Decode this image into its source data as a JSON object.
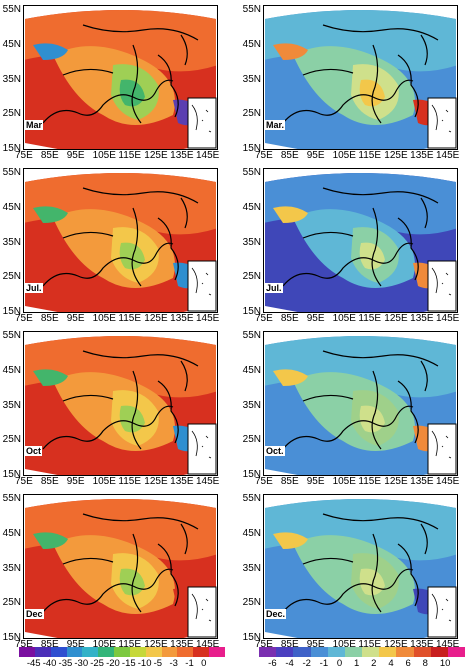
{
  "y_ticks": [
    "55N",
    "45N",
    "35N",
    "25N",
    "15N"
  ],
  "x_ticks": [
    "75E",
    "85E",
    "95E",
    "105E",
    "115E",
    "125E",
    "135E",
    "145E"
  ],
  "left_column": {
    "panels": [
      {
        "month": "Mar",
        "palette": [
          "#d7301f",
          "#ef6c2f",
          "#f39a3c",
          "#9fcf55",
          "#43b56b",
          "#2f8fd0",
          "#5b3fb1"
        ]
      },
      {
        "month": "Jul.",
        "palette": [
          "#d7301f",
          "#ef6c2f",
          "#f39a3c",
          "#f3c74a",
          "#9fcf55",
          "#43b56b",
          "#2f8fd0"
        ]
      },
      {
        "month": "Oct",
        "palette": [
          "#d7301f",
          "#ef6c2f",
          "#f39a3c",
          "#f3c74a",
          "#9fcf55",
          "#43b56b",
          "#2f8fd0"
        ]
      },
      {
        "month": "Dec",
        "palette": [
          "#d7301f",
          "#ef6c2f",
          "#f39a3c",
          "#f3c74a",
          "#9fcf55",
          "#43b56b",
          "#d7301f"
        ]
      }
    ],
    "colorbar": {
      "labels": [
        "-45",
        "-40",
        "-35",
        "-30",
        "-25",
        "-20",
        "-15",
        "-10",
        "-5",
        "-3",
        "-1",
        "0"
      ],
      "colors": [
        "#7a0fa0",
        "#4b2fb8",
        "#2f4fd0",
        "#2f8fd0",
        "#33b2c8",
        "#33b57a",
        "#7cc940",
        "#c6d83a",
        "#f3c74a",
        "#f39a3c",
        "#ef6c2f",
        "#d7301f",
        "#e81e8c"
      ]
    }
  },
  "right_column": {
    "panels": [
      {
        "month": "Mar.",
        "palette": [
          "#4a8fd6",
          "#5fb7d6",
          "#8bd0a6",
          "#cfe08b",
          "#f3c74a",
          "#f08a3a",
          "#d7301f"
        ]
      },
      {
        "month": "Jul.",
        "palette": [
          "#3f47b8",
          "#4a8fd6",
          "#5fb7d6",
          "#8bd0a6",
          "#cfe08b",
          "#f3c74a",
          "#f08a3a"
        ]
      },
      {
        "month": "Oct.",
        "palette": [
          "#4a8fd6",
          "#5fb7d6",
          "#8bd0a6",
          "#9fd08a",
          "#cfe08b",
          "#f3c74a",
          "#f08a3a"
        ]
      },
      {
        "month": "Dec.",
        "palette": [
          "#4a8fd6",
          "#5fb7d6",
          "#8bd0a6",
          "#9fd08a",
          "#cfe08b",
          "#f3c74a",
          "#3f47b8"
        ]
      }
    ],
    "colorbar": {
      "labels": [
        "-6",
        "-4",
        "-2",
        "-1",
        "0",
        "1",
        "2",
        "4",
        "6",
        "8",
        "10"
      ],
      "colors": [
        "#7a2fb0",
        "#4b3fc0",
        "#3f62c8",
        "#4a8fd6",
        "#5fb7d6",
        "#8bd0a6",
        "#cfe08b",
        "#f3c74a",
        "#f08a3a",
        "#e0502a",
        "#c81e1e",
        "#e81e8c"
      ]
    }
  }
}
